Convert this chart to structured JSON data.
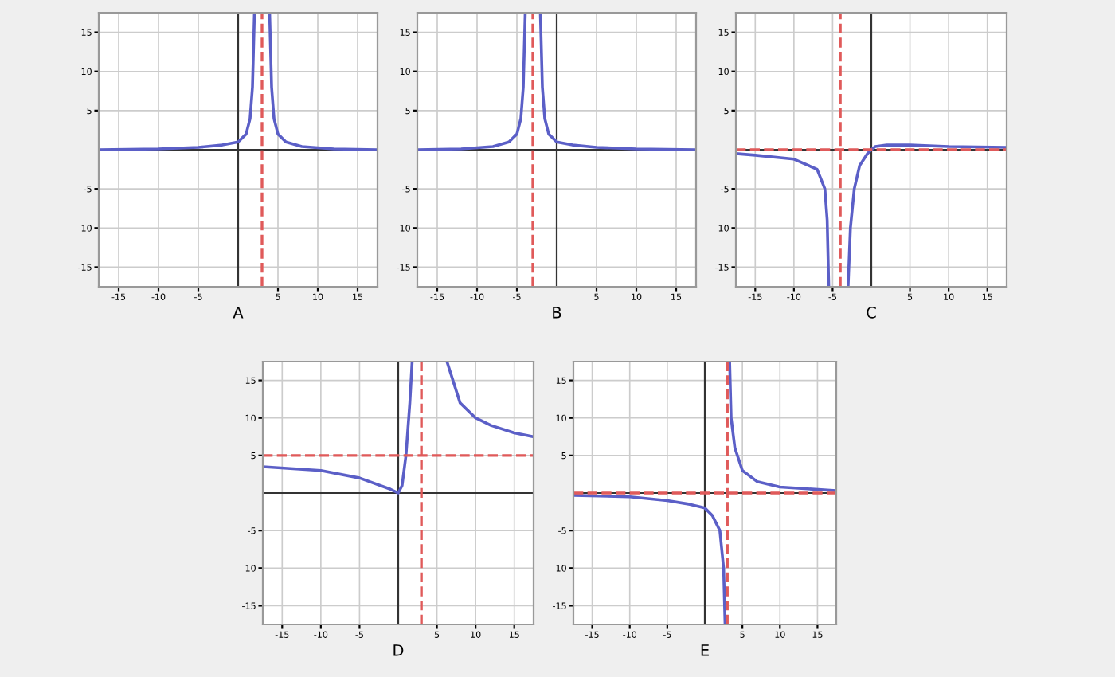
{
  "chart_data": [
    {
      "type": "line",
      "xlabel": "A",
      "xlim": [
        -17.5,
        17.5
      ],
      "ylim": [
        -17.5,
        17.5
      ],
      "xticks": [
        -15,
        -10,
        -5,
        5,
        10,
        15
      ],
      "yticks": [
        -15,
        -10,
        -5,
        5,
        10,
        15
      ],
      "grid": true,
      "ref_lines": [
        {
          "axis": "x",
          "value": 3,
          "color": "#e05a5a",
          "line_style": "dashed"
        }
      ],
      "series": [
        {
          "color": "#5b5fc7",
          "x": [
            -17.5,
            -10,
            -5,
            -2,
            0,
            1,
            1.5,
            1.8,
            2.05
          ],
          "values": [
            0,
            0.1,
            0.3,
            0.6,
            1,
            2,
            4,
            8,
            17.5
          ]
        },
        {
          "color": "#5b5fc7",
          "x": [
            3.95,
            4.2,
            4.5,
            5,
            6,
            8,
            12,
            17.5
          ],
          "values": [
            17.5,
            8,
            4,
            2,
            1,
            0.4,
            0.1,
            0
          ]
        }
      ]
    },
    {
      "type": "line",
      "xlabel": "B",
      "xlim": [
        -17.5,
        17.5
      ],
      "ylim": [
        -17.5,
        17.5
      ],
      "xticks": [
        -15,
        -10,
        -5,
        5,
        10,
        15
      ],
      "yticks": [
        -15,
        -10,
        -5,
        5,
        10,
        15
      ],
      "grid": true,
      "ref_lines": [
        {
          "axis": "x",
          "value": -3,
          "color": "#e05a5a",
          "line_style": "dashed"
        }
      ],
      "series": [
        {
          "color": "#5b5fc7",
          "x": [
            -17.5,
            -12,
            -8,
            -6,
            -5,
            -4.5,
            -4.2,
            -3.95
          ],
          "values": [
            0,
            0.1,
            0.4,
            1,
            2,
            4,
            8,
            17.5
          ]
        },
        {
          "color": "#5b5fc7",
          "x": [
            -2.05,
            -1.8,
            -1.5,
            -1,
            0,
            2,
            5,
            10,
            17.5
          ],
          "values": [
            17.5,
            8,
            4,
            2,
            1,
            0.6,
            0.3,
            0.1,
            0
          ]
        }
      ]
    },
    {
      "type": "line",
      "xlabel": "C",
      "xlim": [
        -17.5,
        17.5
      ],
      "ylim": [
        -17.5,
        17.5
      ],
      "xticks": [
        -15,
        -10,
        -5,
        5,
        10,
        15
      ],
      "yticks": [
        -15,
        -10,
        -5,
        5,
        10,
        15
      ],
      "grid": true,
      "ref_lines": [
        {
          "axis": "x",
          "value": -4,
          "color": "#e05a5a",
          "line_style": "dashed"
        },
        {
          "axis": "y",
          "value": 0,
          "color": "#e05a5a",
          "line_style": "dashed"
        }
      ],
      "series": [
        {
          "color": "#5b5fc7",
          "x": [
            -17.5,
            -15,
            -10,
            -7,
            -6,
            -5.7,
            -5.5
          ],
          "values": [
            -0.5,
            -0.7,
            -1.2,
            -2.5,
            -5,
            -9,
            -17.5
          ]
        },
        {
          "color": "#5b5fc7",
          "x": [
            -3,
            -2.7,
            -2.2,
            -1.5,
            -0.5,
            0,
            0.5,
            2,
            5,
            10,
            17.5
          ],
          "values": [
            -17.5,
            -10,
            -5,
            -2,
            -0.5,
            0,
            0.4,
            0.6,
            0.6,
            0.4,
            0.3
          ]
        }
      ]
    },
    {
      "type": "line",
      "xlabel": "D",
      "xlim": [
        -17.5,
        17.5
      ],
      "ylim": [
        -17.5,
        17.5
      ],
      "xticks": [
        -15,
        -10,
        -5,
        5,
        10,
        15
      ],
      "yticks": [
        -15,
        -10,
        -5,
        5,
        10,
        15
      ],
      "grid": true,
      "ref_lines": [
        {
          "axis": "x",
          "value": 3,
          "color": "#e05a5a",
          "line_style": "dashed"
        },
        {
          "axis": "y",
          "value": 5,
          "color": "#e05a5a",
          "line_style": "dashed"
        }
      ],
      "series": [
        {
          "color": "#5b5fc7",
          "x": [
            -17.5,
            -10,
            -5,
            -1,
            0,
            0.5,
            1,
            1.5,
            1.8
          ],
          "values": [
            3.5,
            3,
            2,
            0.5,
            0,
            1,
            5,
            12,
            17.5
          ]
        },
        {
          "color": "#5b5fc7",
          "x": [
            6.3,
            8,
            10,
            12,
            15,
            17.5
          ],
          "values": [
            17.5,
            12,
            10,
            9,
            8,
            7.5
          ]
        }
      ]
    },
    {
      "type": "line",
      "xlabel": "E",
      "xlim": [
        -17.5,
        17.5
      ],
      "ylim": [
        -17.5,
        17.5
      ],
      "xticks": [
        -15,
        -10,
        -5,
        5,
        10,
        15
      ],
      "yticks": [
        -15,
        -10,
        -5,
        5,
        10,
        15
      ],
      "grid": true,
      "ref_lines": [
        {
          "axis": "x",
          "value": 3,
          "color": "#e05a5a",
          "line_style": "dashed"
        },
        {
          "axis": "y",
          "value": 0,
          "color": "#e05a5a",
          "line_style": "dashed"
        }
      ],
      "series": [
        {
          "color": "#5b5fc7",
          "x": [
            -17.5,
            -10,
            -5,
            -2,
            0,
            1,
            2,
            2.5,
            2.7
          ],
          "values": [
            -0.3,
            -0.5,
            -1,
            -1.5,
            -2,
            -3,
            -5,
            -10,
            -17.5
          ]
        },
        {
          "color": "#5b5fc7",
          "x": [
            3.3,
            3.5,
            4,
            5,
            7,
            10,
            17.5
          ],
          "values": [
            17.5,
            10,
            6,
            3,
            1.5,
            0.8,
            0.3
          ]
        }
      ]
    }
  ]
}
